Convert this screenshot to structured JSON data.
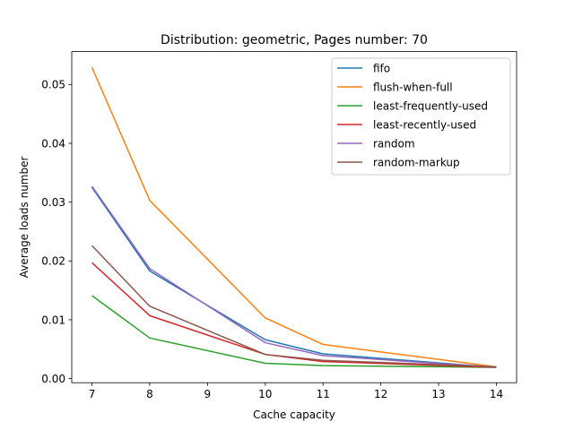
{
  "chart_data": {
    "type": "line",
    "title": "Distribution: geometric, Pages number: 70",
    "xlabel": "Cache capacity",
    "ylabel": "Average loads number",
    "xlim": [
      6.65,
      14.35
    ],
    "ylim": [
      -0.0007,
      0.0556
    ],
    "xticks": [
      7,
      8,
      9,
      10,
      11,
      12,
      13,
      14
    ],
    "yticks": [
      0.0,
      0.01,
      0.02,
      0.03,
      0.04,
      0.05
    ],
    "ytick_labels": [
      "0.00",
      "0.01",
      "0.02",
      "0.03",
      "0.04",
      "0.05"
    ],
    "grid": false,
    "legend_position": "top-right",
    "x": [
      7,
      8,
      10,
      11,
      14
    ],
    "series": [
      {
        "name": "fifo",
        "color": "#1f77b4",
        "values": [
          0.0325,
          0.0183,
          0.0066,
          0.0042,
          0.0019
        ]
      },
      {
        "name": "flush-when-full",
        "color": "#ff7f0e",
        "values": [
          0.0529,
          0.0303,
          0.0103,
          0.0058,
          0.002
        ]
      },
      {
        "name": "least-frequently-used",
        "color": "#2ca02c",
        "values": [
          0.0141,
          0.0069,
          0.0026,
          0.0022,
          0.0019
        ]
      },
      {
        "name": "least-recently-used",
        "color": "#d62728",
        "values": [
          0.0197,
          0.0107,
          0.0041,
          0.0029,
          0.0019
        ]
      },
      {
        "name": "random",
        "color": "#9467bd",
        "values": [
          0.0327,
          0.0187,
          0.0061,
          0.0039,
          0.0019
        ]
      },
      {
        "name": "random-markup",
        "color": "#8c564b",
        "values": [
          0.0226,
          0.0123,
          0.0041,
          0.0031,
          0.002
        ]
      }
    ]
  }
}
